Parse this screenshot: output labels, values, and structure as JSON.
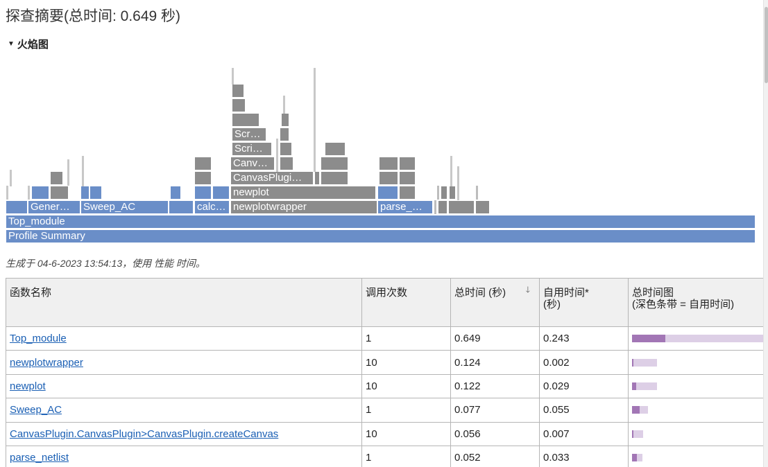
{
  "page": {
    "title": "探查摘要(总时间: 0.649 秒)",
    "flame_section_label": "火焰图",
    "generated_text": "生成于 04-6-2023 13:54:13，使用 性能 时间。"
  },
  "flame": {
    "labels": {
      "profile_summary": "Profile Summary",
      "top_module": "Top_module",
      "gener": "Gener…",
      "sweep_ac": "Sweep_AC",
      "calc": "calc…",
      "newplotwrapper": "newplotwrapper",
      "parse": "parse_…",
      "newplot": "newplot",
      "canvasplugin": "CanvasPlugi…",
      "canv": "Canv…",
      "scri": "Scri…",
      "scr": "Scr…"
    }
  },
  "table": {
    "headers": {
      "name": "函数名称",
      "calls": "调用次数",
      "total": "总时间 (秒)",
      "sort_icon": "sort-descending-icon",
      "self": "自用时间*",
      "self_unit": "(秒)",
      "graph": "总时间图",
      "graph_note": "(深色条带 = 自用时间)"
    },
    "rows": [
      {
        "name": "Top_module",
        "calls": "1",
        "total": "0.649",
        "self": "0.243",
        "total_frac": 1.0,
        "self_frac": 0.374
      },
      {
        "name": "newplotwrapper",
        "calls": "10",
        "total": "0.124",
        "self": "0.002",
        "total_frac": 0.191,
        "self_frac": 0.003
      },
      {
        "name": "newplot",
        "calls": "10",
        "total": "0.122",
        "self": "0.029",
        "total_frac": 0.188,
        "self_frac": 0.045
      },
      {
        "name": "Sweep_AC",
        "calls": "1",
        "total": "0.077",
        "self": "0.055",
        "total_frac": 0.119,
        "self_frac": 0.085
      },
      {
        "name": "CanvasPlugin.CanvasPlugin>CanvasPlugin.createCanvas",
        "calls": "10",
        "total": "0.056",
        "self": "0.007",
        "total_frac": 0.086,
        "self_frac": 0.011
      },
      {
        "name": "parse_netlist",
        "calls": "1",
        "total": "0.052",
        "self": "0.033",
        "total_frac": 0.08,
        "self_frac": 0.051
      }
    ]
  },
  "colors": {
    "flame_blue": "#6a8ec8",
    "flame_gray": "#8c8c8c",
    "bar_self": "#a276b5",
    "bar_total": "#ddcfe6",
    "link": "#1a5fb4"
  }
}
